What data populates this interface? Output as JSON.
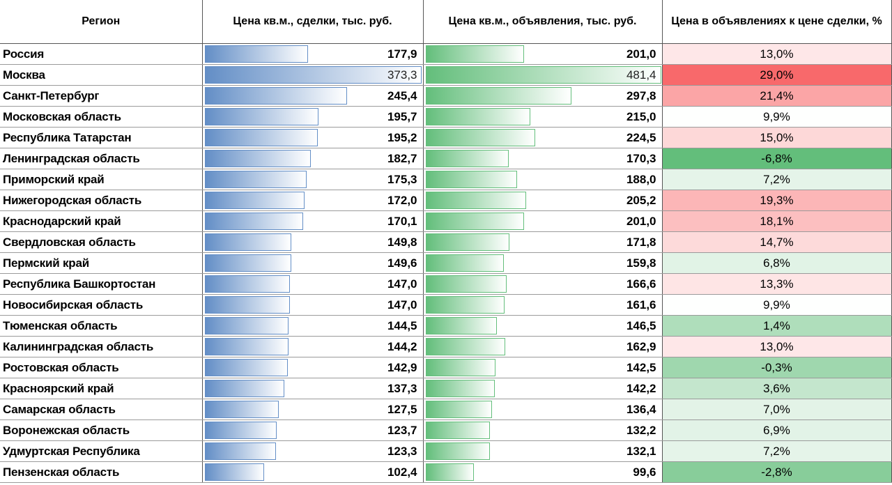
{
  "headers": {
    "region": "Регион",
    "deal_price": "Цена кв.м., сделки, тыс. руб.",
    "listing_price": "Цена кв.м., объявления, тыс. руб.",
    "ratio": "Цена в объявлениях к цене сделки, %"
  },
  "rows": [
    {
      "region": "Россия",
      "deal": "177,9",
      "listing": "201,0",
      "ratio": "13,0%"
    },
    {
      "region": "Москва",
      "deal": "373,3",
      "listing": "481,4",
      "ratio": "29,0%"
    },
    {
      "region": "Санкт-Петербург",
      "deal": "245,4",
      "listing": "297,8",
      "ratio": "21,4%"
    },
    {
      "region": "Московская область",
      "deal": "195,7",
      "listing": "215,0",
      "ratio": "9,9%"
    },
    {
      "region": "Республика Татарстан",
      "deal": "195,2",
      "listing": "224,5",
      "ratio": "15,0%"
    },
    {
      "region": "Ленинградская область",
      "deal": "182,7",
      "listing": "170,3",
      "ratio": "-6,8%"
    },
    {
      "region": "Приморский край",
      "deal": "175,3",
      "listing": "188,0",
      "ratio": "7,2%"
    },
    {
      "region": "Нижегородская область",
      "deal": "172,0",
      "listing": "205,2",
      "ratio": "19,3%"
    },
    {
      "region": "Краснодарский край",
      "deal": "170,1",
      "listing": "201,0",
      "ratio": "18,1%"
    },
    {
      "region": "Свердловская область",
      "deal": "149,8",
      "listing": "171,8",
      "ratio": "14,7%"
    },
    {
      "region": "Пермский край",
      "deal": "149,6",
      "listing": "159,8",
      "ratio": "6,8%"
    },
    {
      "region": "Республика Башкортостан",
      "deal": "147,0",
      "listing": "166,6",
      "ratio": "13,3%"
    },
    {
      "region": "Новосибирская область",
      "deal": "147,0",
      "listing": "161,6",
      "ratio": "9,9%"
    },
    {
      "region": "Тюменская область",
      "deal": "144,5",
      "listing": "146,5",
      "ratio": "1,4%"
    },
    {
      "region": "Калининградская область",
      "deal": "144,2",
      "listing": "162,9",
      "ratio": "13,0%"
    },
    {
      "region": "Ростовская область",
      "deal": "142,9",
      "listing": "142,5",
      "ratio": "-0,3%"
    },
    {
      "region": "Красноярский край",
      "deal": "137,3",
      "listing": "142,2",
      "ratio": "3,6%"
    },
    {
      "region": "Самарская область",
      "deal": "127,5",
      "listing": "136,4",
      "ratio": "7,0%"
    },
    {
      "region": "Воронежская область",
      "deal": "123,7",
      "listing": "132,2",
      "ratio": "6,9%"
    },
    {
      "region": "Удмуртская Республика",
      "deal": "123,3",
      "listing": "132,1",
      "ratio": "7,2%"
    },
    {
      "region": "Пензенская область",
      "deal": "102,4",
      "listing": "99,6",
      "ratio": "-2,8%"
    }
  ],
  "colors": {
    "deal_bar": "#638EC6",
    "listing_bar": "#63BE7B",
    "scale_high": "#F8696B",
    "scale_mid": "#FFFFFF",
    "scale_low": "#63BE7B"
  }
}
